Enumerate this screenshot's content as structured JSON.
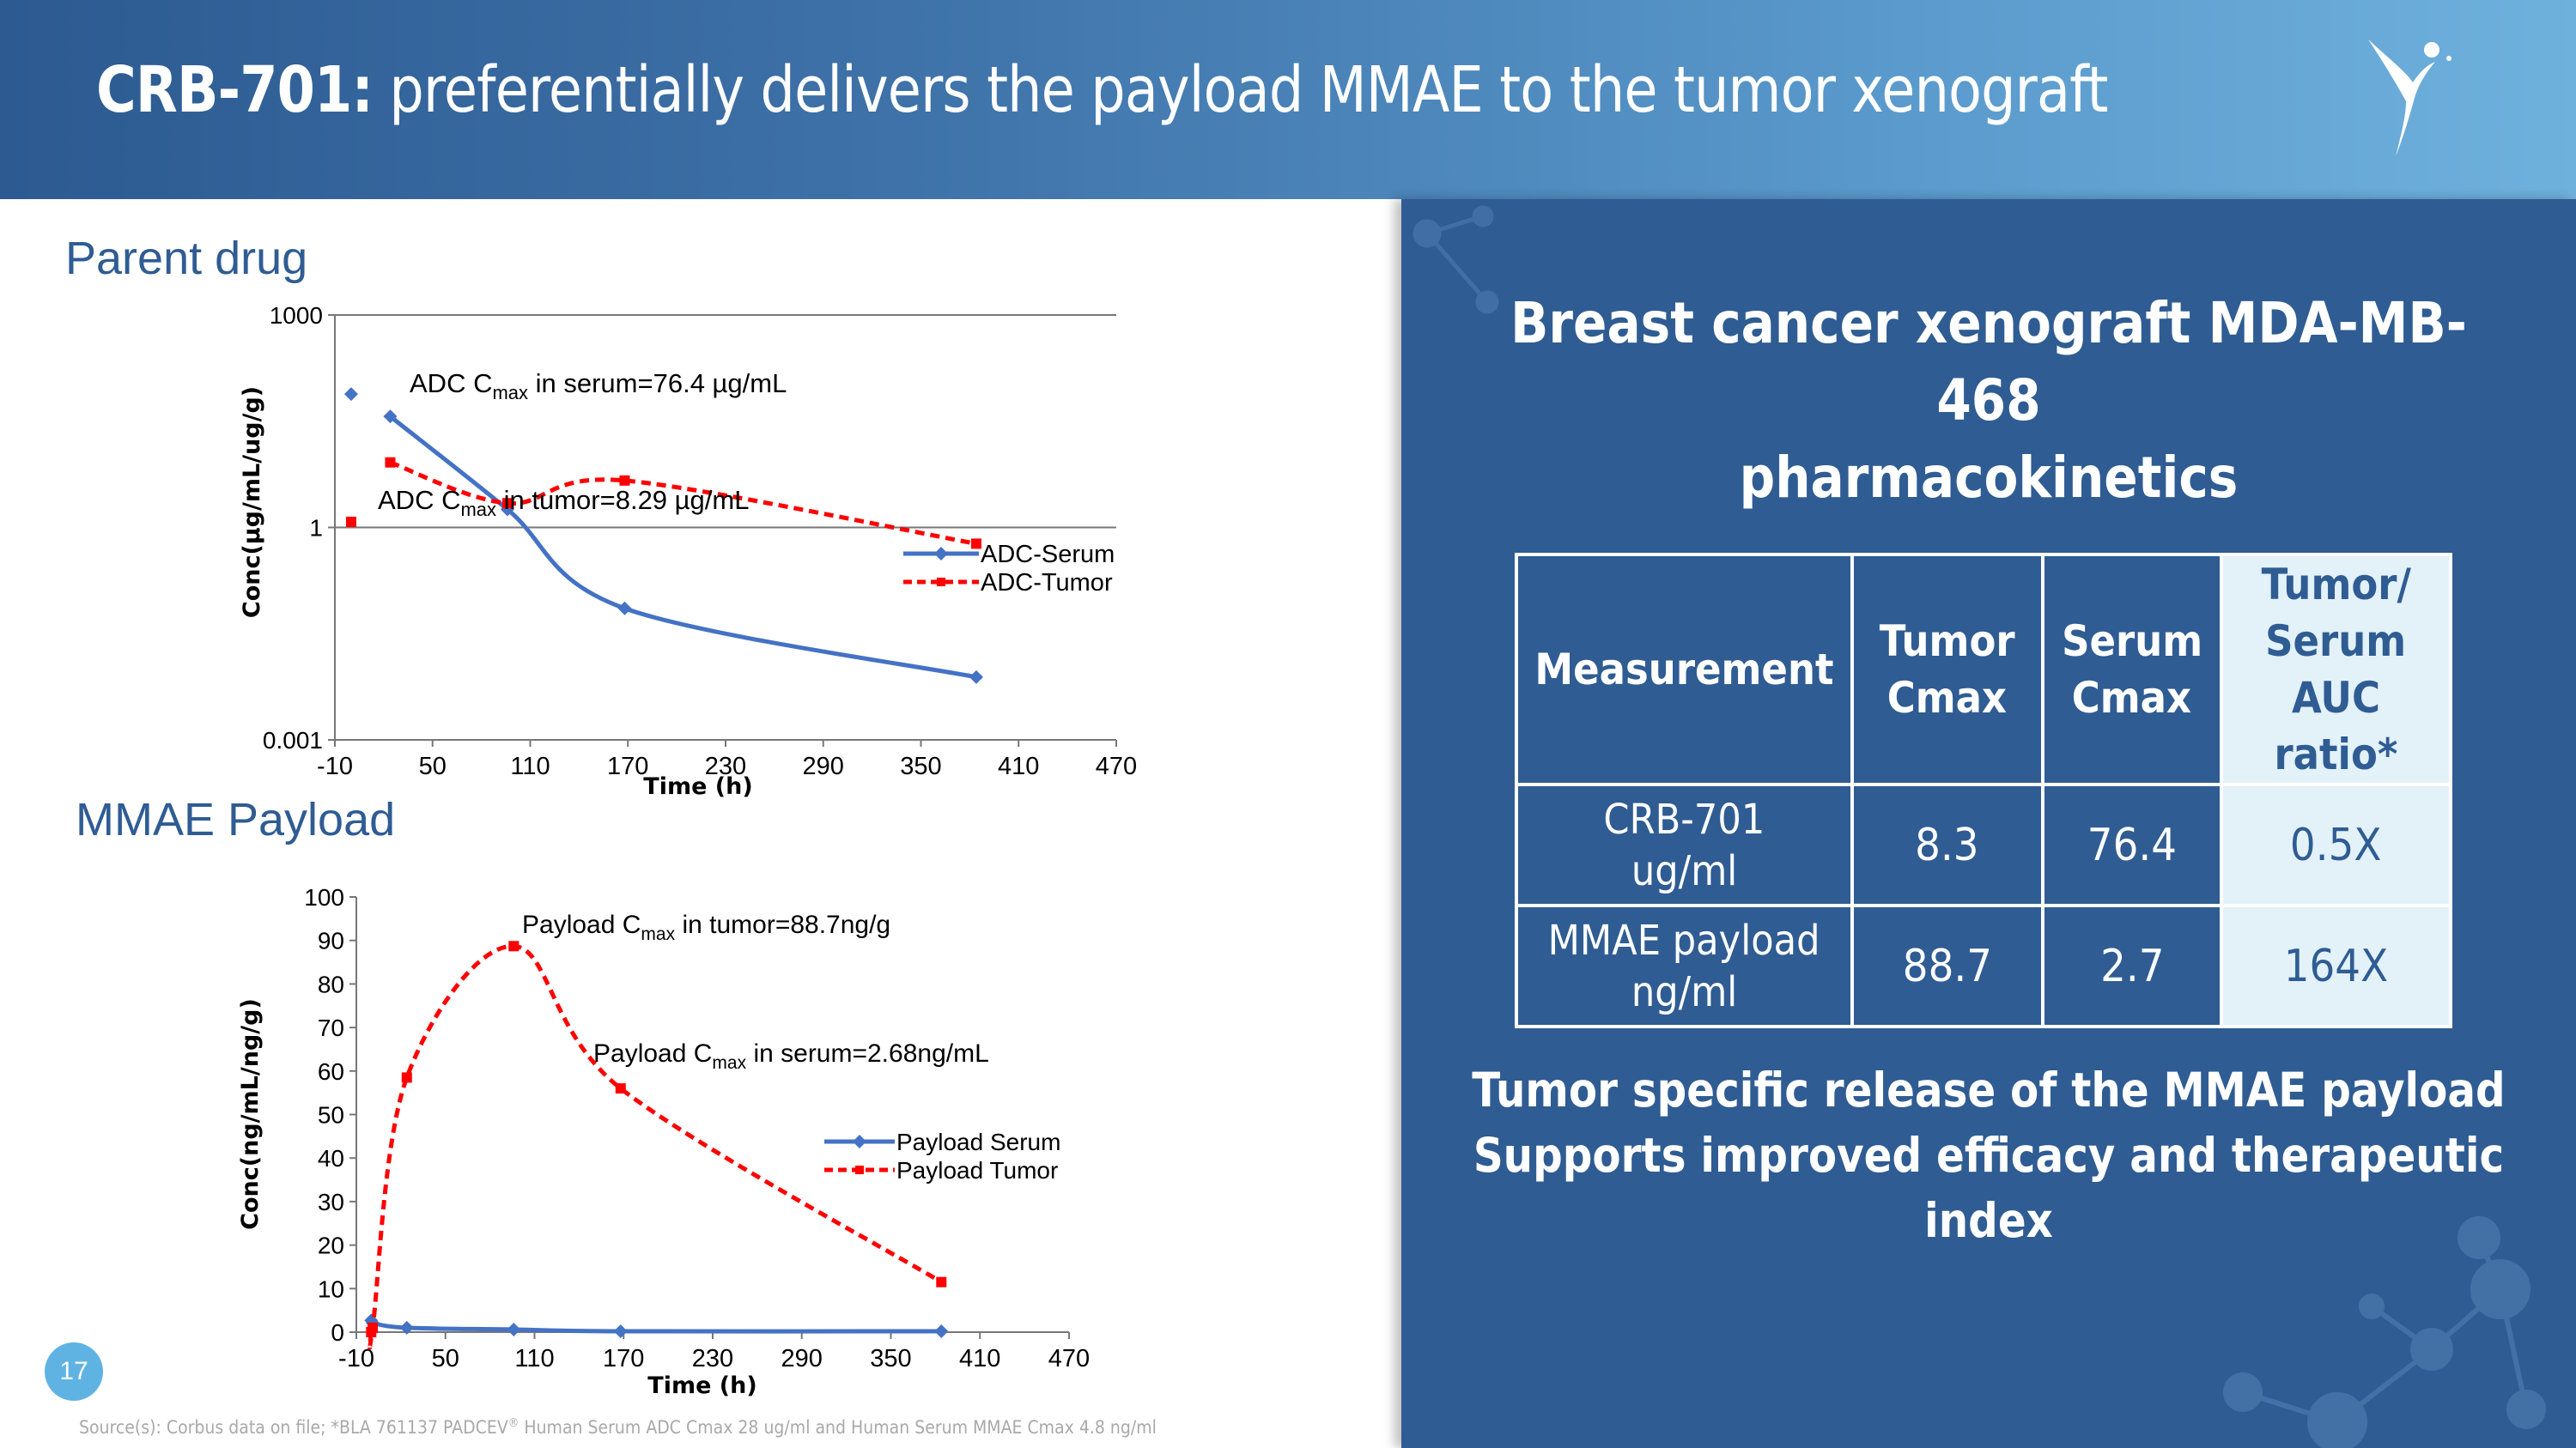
{
  "header": {
    "title_bold": "CRB-701:",
    "title_rest": "preferentially delivers the payload MMAE to the tumor xenograft"
  },
  "right_panel": {
    "title_line1": "Breast cancer xenograft MDA-MB-468",
    "title_line2": "pharmacokinetics",
    "table": {
      "headers": [
        [
          "Measurement"
        ],
        [
          "Tumor",
          "Cmax"
        ],
        [
          "Serum",
          "Cmax"
        ],
        [
          "Tumor/",
          "Serum",
          "AUC ratio*"
        ]
      ],
      "rows": [
        {
          "label": [
            "CRB-701",
            "ug/ml"
          ],
          "tumor_cmax": "8.3",
          "serum_cmax": "76.4",
          "ratio": "0.5X"
        },
        {
          "label": [
            "MMAE payload",
            "ng/ml"
          ],
          "tumor_cmax": "88.7",
          "serum_cmax": "2.7",
          "ratio": "164X"
        }
      ]
    },
    "tagline_line1": "Tumor specific release of the MMAE payload",
    "tagline_line2": "Supports improved efficacy and therapeutic index"
  },
  "left": {
    "parent_title": "Parent drug",
    "mmae_title": "MMAE Payload"
  },
  "footer": {
    "page_number": "17",
    "source_pre": "Source(s): Corbus data on file; *BLA 761137 PADCEV",
    "source_reg": "®",
    "source_post": " Human Serum ADC Cmax 28 ug/ml and Human Serum MMAE Cmax 4.8 ng/ml"
  },
  "colors": {
    "brand_blue": "#2f5c93",
    "serum_line": "#4472c4",
    "tumor_line": "#ff0000",
    "highlight_cell": "#e3f1f9"
  },
  "chart_data": [
    {
      "type": "line",
      "scale": "log",
      "title": "Parent drug",
      "xlabel": "Time  (h)",
      "ylabel": "Conc(µg/mL/ug/g)",
      "xlim": [
        -10,
        470
      ],
      "ylim": [
        0.001,
        1000
      ],
      "x_ticks": [
        -10,
        50,
        110,
        170,
        230,
        290,
        350,
        410,
        470
      ],
      "y_ticks": [
        0.001,
        1,
        1000
      ],
      "y_tick_labels": [
        "0.001",
        "1",
        "1000"
      ],
      "legend": "right",
      "series": [
        {
          "name": "ADC-Serum",
          "color": "#4472c4",
          "dash": false,
          "x": [
            24,
            96,
            168,
            384
          ],
          "y": [
            37,
            1.8,
            0.072,
            0.0077
          ]
        },
        {
          "name": "ADC-Tumor",
          "color": "#ff0000",
          "dash": true,
          "x": [
            24,
            96,
            168,
            384
          ],
          "y": [
            8.29,
            2.2,
            4.6,
            0.59
          ]
        }
      ],
      "standalone_markers": [
        {
          "x": 0,
          "y": 76.4,
          "color": "#4472c4",
          "shape": "diamond"
        },
        {
          "x": 0,
          "y": 1.2,
          "color": "#ff0000",
          "shape": "square"
        }
      ],
      "annotations": [
        {
          "pre": "ADC C",
          "sub": "max",
          "post": " in serum=76.4 µg/mL"
        },
        {
          "pre": "ADC C",
          "sub": "max",
          "post": " in tumor=8.29 µg/mL"
        }
      ]
    },
    {
      "type": "line",
      "scale": "linear",
      "title": "MMAE Payload",
      "xlabel": "Time  (h)",
      "ylabel": "Conc(ng/mL/ng/g)",
      "xlim": [
        -10,
        470
      ],
      "ylim": [
        0,
        100
      ],
      "x_ticks": [
        -10,
        50,
        110,
        170,
        230,
        290,
        350,
        410,
        470
      ],
      "y_ticks": [
        0,
        10,
        20,
        30,
        40,
        50,
        60,
        70,
        80,
        90,
        100
      ],
      "legend": "right",
      "series": [
        {
          "name": "Payload Serum",
          "color": "#4472c4",
          "dash": false,
          "x": [
            0,
            1,
            24,
            96,
            168,
            384
          ],
          "y": [
            2.68,
            2.1,
            1.0,
            0.6,
            0.2,
            0.2
          ]
        },
        {
          "name": "Payload Tumor",
          "color": "#ff0000",
          "dash": true,
          "x": [
            0,
            1,
            24,
            96,
            168,
            384
          ],
          "y": [
            0,
            1,
            58.5,
            88.7,
            56,
            11.5
          ]
        }
      ],
      "annotations": [
        {
          "pre": "Payload C",
          "sub": "max",
          "post": " in tumor=88.7ng/g"
        },
        {
          "pre": "Payload C",
          "sub": "max",
          "post": " in serum=2.68ng/mL"
        }
      ]
    }
  ]
}
